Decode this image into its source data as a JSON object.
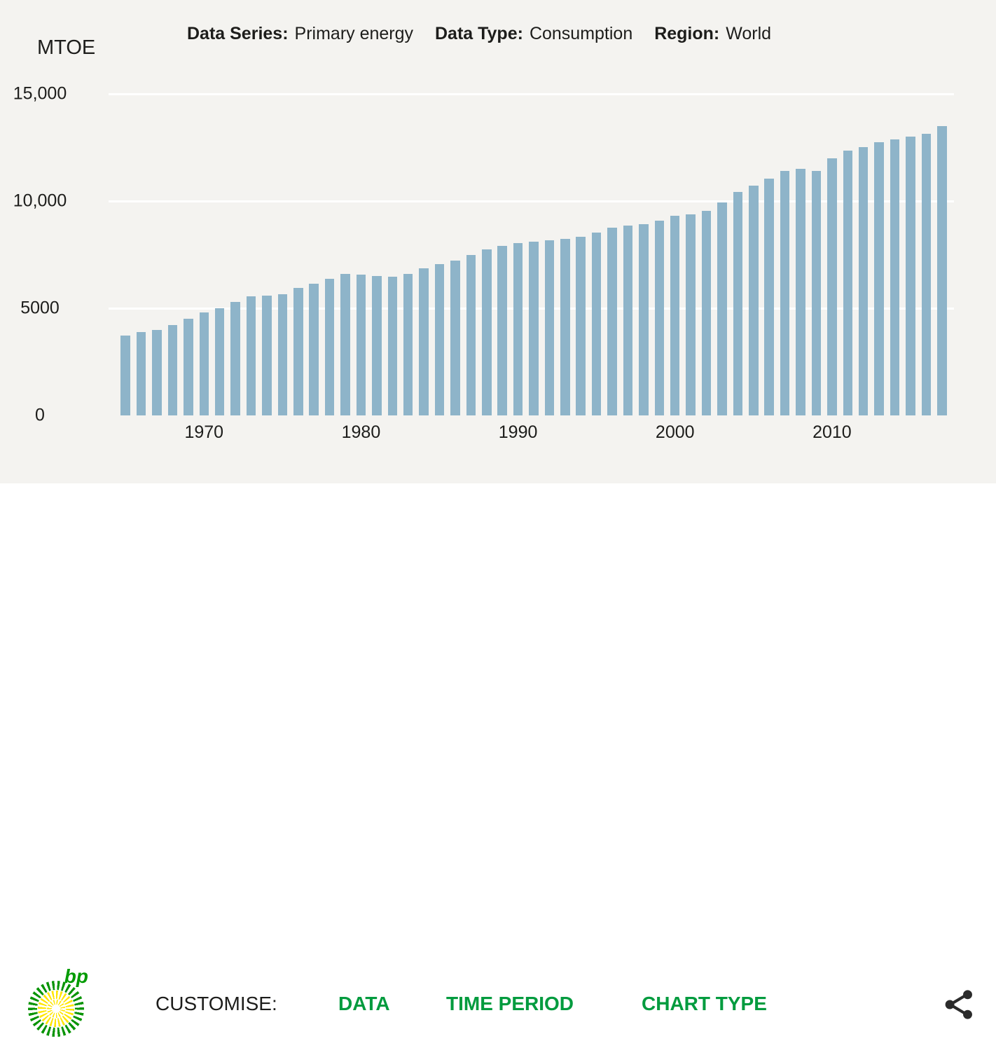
{
  "header": {
    "fields": [
      {
        "label": "Data Series:",
        "value": "Primary energy"
      },
      {
        "label": "Data Type:",
        "value": "Consumption"
      },
      {
        "label": "Region:",
        "value": "World"
      }
    ]
  },
  "chart_data": {
    "type": "bar",
    "title": "Primary energy Consumption, World",
    "ylabel": "MTOE",
    "xlabel": "",
    "ylim": [
      0,
      15000
    ],
    "grid": true,
    "bar_color": "#8eb4c9",
    "grid_color": "#ffffff",
    "background_color": "#f4f3f0",
    "x": [
      1965,
      1966,
      1967,
      1968,
      1969,
      1970,
      1971,
      1972,
      1973,
      1974,
      1975,
      1976,
      1977,
      1978,
      1979,
      1980,
      1981,
      1982,
      1983,
      1984,
      1985,
      1986,
      1987,
      1988,
      1989,
      1990,
      1991,
      1992,
      1993,
      1994,
      1995,
      1996,
      1997,
      1998,
      1999,
      2000,
      2001,
      2002,
      2003,
      2004,
      2005,
      2006,
      2007,
      2008,
      2009,
      2010,
      2011,
      2012,
      2013,
      2014,
      2015,
      2016,
      2017
    ],
    "values": [
      3730,
      3880,
      4000,
      4230,
      4510,
      4800,
      5010,
      5280,
      5570,
      5600,
      5640,
      5960,
      6150,
      6380,
      6600,
      6575,
      6510,
      6480,
      6600,
      6870,
      7060,
      7230,
      7470,
      7750,
      7910,
      8040,
      8110,
      8160,
      8220,
      8330,
      8540,
      8760,
      8850,
      8910,
      9070,
      9300,
      9370,
      9540,
      9940,
      10410,
      10720,
      11040,
      11400,
      11490,
      11390,
      12000,
      12340,
      12530,
      12730,
      12880,
      13000,
      13150,
      13510
    ],
    "yticks": [
      {
        "value": 0,
        "label": "0"
      },
      {
        "value": 5000,
        "label": "5000"
      },
      {
        "value": 10000,
        "label": "10,000"
      },
      {
        "value": 15000,
        "label": "15,000"
      }
    ],
    "xticks": [
      1970,
      1980,
      1990,
      2000,
      2010
    ]
  },
  "footer": {
    "logo_text": "bp",
    "customise_label": "CUSTOMISE:",
    "buttons": [
      {
        "label": "DATA"
      },
      {
        "label": "TIME PERIOD"
      },
      {
        "label": "CHART TYPE"
      }
    ],
    "share_icon": "share-icon",
    "accent_green": "#009b3e"
  }
}
